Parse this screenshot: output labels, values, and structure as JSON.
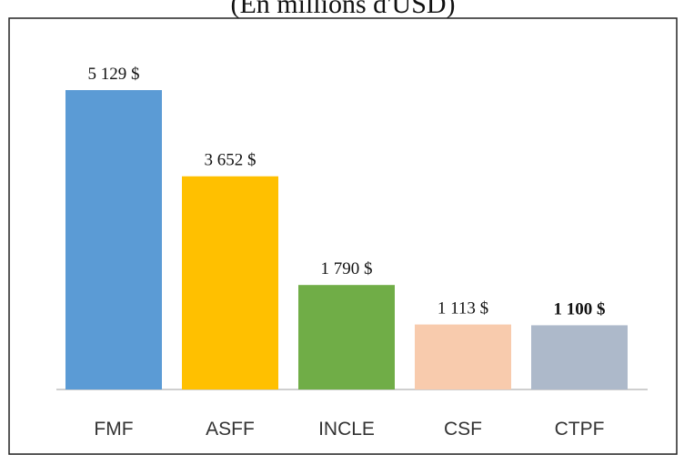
{
  "chart_data": {
    "type": "bar",
    "title": "(En millions d'USD)",
    "categories": [
      "FMF",
      "ASFF",
      "INCLE",
      "CSF",
      "CTPF"
    ],
    "values": [
      5129,
      3652,
      1790,
      1113,
      1100
    ],
    "value_labels": [
      "5 129 $",
      "3 652 $",
      "1 790 $",
      "1 113 $",
      "1 100 $"
    ],
    "colors": [
      "#5b9bd5",
      "#ffc000",
      "#70ad47",
      "#f8cbad",
      "#adb9ca"
    ]
  }
}
